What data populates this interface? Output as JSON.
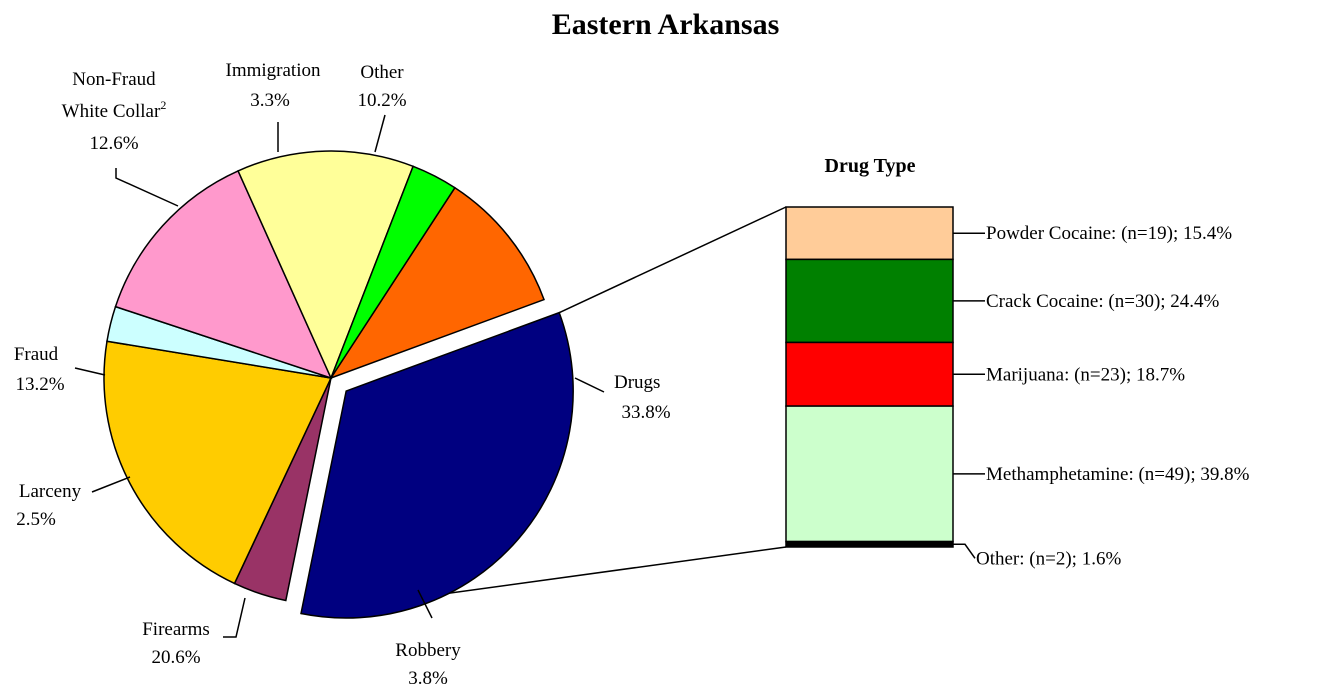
{
  "chart_data": [
    {
      "type": "pie",
      "title": "Eastern Arkansas",
      "slices": [
        {
          "label_lines": [
            "Drugs"
          ],
          "percent_text": "33.8%",
          "value": 33.8,
          "color": "#000080",
          "exploded": true
        },
        {
          "label_lines": [
            "Robbery"
          ],
          "percent_text": "3.8%",
          "value": 3.8,
          "color": "#993366"
        },
        {
          "label_lines": [
            "Firearms"
          ],
          "percent_text": "20.6%",
          "value": 20.6,
          "color": "#FFCC00"
        },
        {
          "label_lines": [
            "Larceny"
          ],
          "percent_text": "2.5%",
          "value": 2.5,
          "color": "#CCFFFF"
        },
        {
          "label_lines": [
            "Fraud"
          ],
          "percent_text": "13.2%",
          "value": 13.2,
          "color": "#FF99CC"
        },
        {
          "label_lines": [
            "Non-Fraud",
            "White Collar"
          ],
          "superscript": "2",
          "percent_text": "12.6%",
          "value": 12.6,
          "color": "#FFFF99"
        },
        {
          "label_lines": [
            "Immigration"
          ],
          "percent_text": "3.3%",
          "value": 3.3,
          "color": "#00FF00"
        },
        {
          "label_lines": [
            "Other"
          ],
          "percent_text": "10.2%",
          "value": 10.2,
          "color": "#FF6600"
        }
      ]
    },
    {
      "type": "bar",
      "stacked": true,
      "title": "Drug Type",
      "segments": [
        {
          "label": "Powder Cocaine: (n=19); 15.4%",
          "n": 19,
          "percent": 15.4,
          "color": "#FFCC99"
        },
        {
          "label": "Crack Cocaine: (n=30); 24.4%",
          "n": 30,
          "percent": 24.4,
          "color": "#008000"
        },
        {
          "label": "Marijuana: (n=23); 18.7%",
          "n": 23,
          "percent": 18.7,
          "color": "#FF0000"
        },
        {
          "label": "Methamphetamine: (n=49); 39.8%",
          "n": 49,
          "percent": 39.8,
          "color": "#CCFFCC"
        },
        {
          "label": "Other: (n=2); 1.6%",
          "n": 2,
          "percent": 1.6,
          "color": "#000000"
        }
      ]
    }
  ]
}
